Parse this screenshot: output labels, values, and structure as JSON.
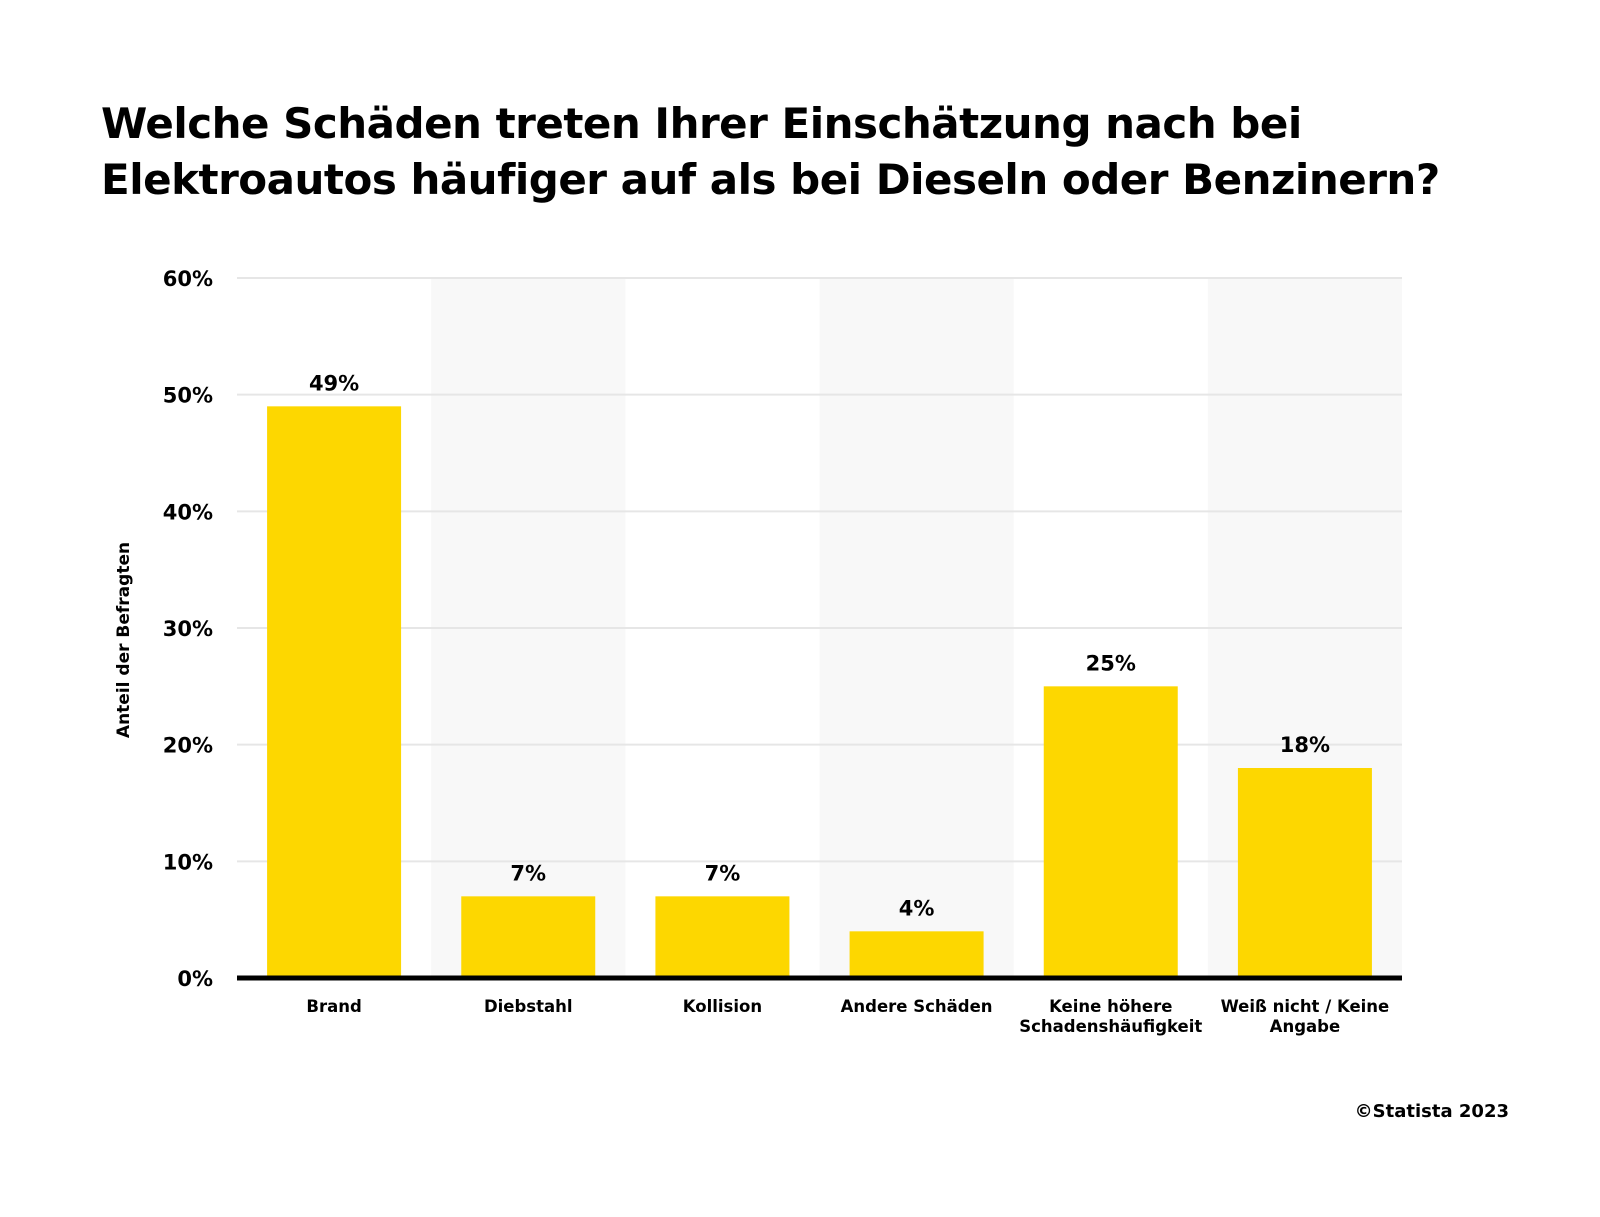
{
  "title": "Welche Schäden treten Ihrer Einschätzung nach bei Elektroautos häufiger auf als bei Dieseln oder Benzinern?",
  "copyright": "©Statista 2023",
  "chart_data": {
    "type": "bar",
    "title": "Welche Schäden treten Ihrer Einschätzung nach bei Elektroautos häufiger auf als bei Dieseln oder Benzinern?",
    "xlabel": "",
    "ylabel": "Anteil der Befragten",
    "ylim": [
      0,
      60
    ],
    "yticks": [
      "0%",
      "10%",
      "20%",
      "30%",
      "40%",
      "50%",
      "60%"
    ],
    "grid": true,
    "categories": [
      [
        "Brand"
      ],
      [
        "Diebstahl"
      ],
      [
        "Kollision"
      ],
      [
        "Andere Schäden"
      ],
      [
        "Keine höhere",
        "Schadenshäufigkeit"
      ],
      [
        "Weiß nicht / Keine",
        "Angabe"
      ]
    ],
    "values": [
      49,
      7,
      7,
      4,
      25,
      18
    ],
    "data_labels": [
      "49%",
      "7%",
      "7%",
      "4%",
      "25%",
      "18%"
    ],
    "colors": {
      "bar": "#FDD700",
      "band": "#F8F8F8",
      "grid": "#E6E6E6",
      "axis": "#000000"
    }
  }
}
